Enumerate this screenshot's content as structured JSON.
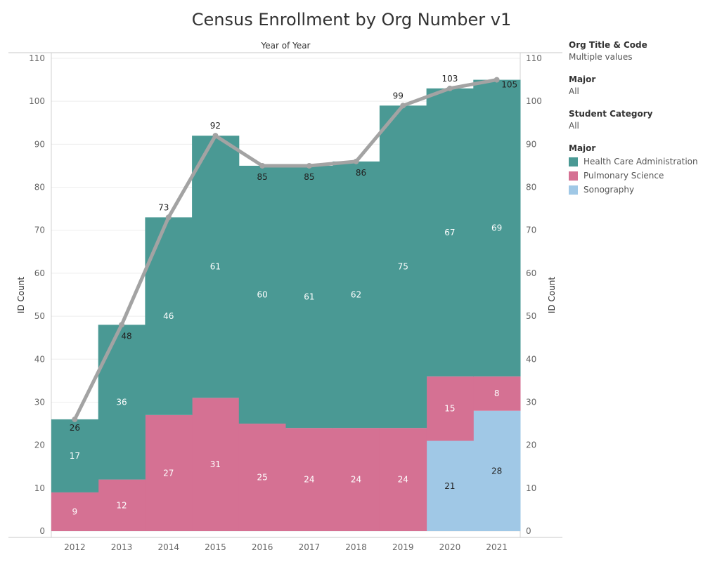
{
  "title": "Census Enrollment by Org Number v1",
  "filters": [
    {
      "title": "Org Title & Code",
      "value": "Multiple values"
    },
    {
      "title": "Major",
      "value": "All"
    },
    {
      "title": "Student Category",
      "value": "All"
    }
  ],
  "legend": {
    "title": "Major",
    "items": [
      {
        "label": "Health Care Administration",
        "color": "#4a9994"
      },
      {
        "label": "Pulmonary Science",
        "color": "#d57193"
      },
      {
        "label": "Sonography",
        "color": "#a0c8e6"
      }
    ]
  },
  "chart_data": {
    "type": "bar",
    "stacked": true,
    "x_header": "Year of Year",
    "ylabel": "ID Count",
    "ylabel_right": "ID Count",
    "ylim": [
      0,
      110
    ],
    "yticks": [
      0,
      10,
      20,
      30,
      40,
      50,
      60,
      70,
      80,
      90,
      100,
      110
    ],
    "categories": [
      "2012",
      "2013",
      "2014",
      "2015",
      "2016",
      "2017",
      "2018",
      "2019",
      "2020",
      "2021"
    ],
    "series": [
      {
        "name": "Sonography",
        "color": "#a0c8e6",
        "values": [
          0,
          0,
          0,
          0,
          0,
          0,
          0,
          0,
          21,
          28
        ]
      },
      {
        "name": "Pulmonary Science",
        "color": "#d57193",
        "values": [
          9,
          12,
          27,
          31,
          25,
          24,
          24,
          24,
          15,
          8
        ]
      },
      {
        "name": "Health Care Administration",
        "color": "#4a9994",
        "values": [
          17,
          36,
          46,
          61,
          60,
          61,
          62,
          75,
          67,
          69
        ]
      }
    ],
    "total_line": {
      "color": "#a3a3a3",
      "values": [
        26,
        48,
        73,
        92,
        85,
        85,
        86,
        99,
        103,
        105
      ]
    },
    "segment_label_colors": {
      "Sonography": "#222222",
      "Pulmonary Science": "#ffffff",
      "Health Care Administration": "#ffffff"
    },
    "grid": true
  }
}
